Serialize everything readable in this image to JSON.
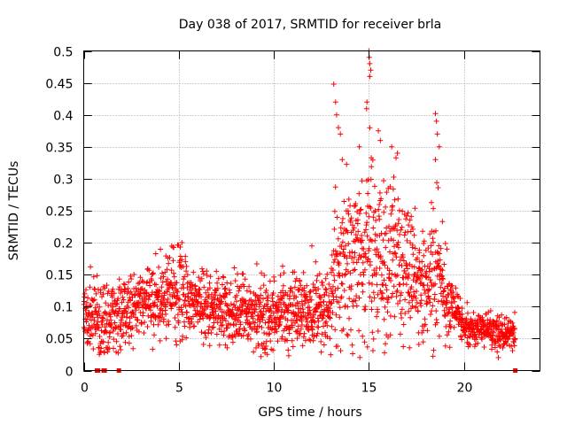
{
  "chart_data": {
    "type": "scatter",
    "title": "Day 038 of 2017, SRMTID for receiver brla",
    "xlabel": "GPS time / hours",
    "ylabel": "SRMTID / TECUs",
    "xlim": [
      0,
      24
    ],
    "ylim": [
      0,
      0.5
    ],
    "x_ticks": [
      0,
      5,
      10,
      15,
      20
    ],
    "x_tick_labels": [
      "0",
      "5",
      "10",
      "15",
      "20"
    ],
    "y_ticks": [
      0,
      0.05,
      0.1,
      0.15,
      0.2,
      0.25,
      0.3,
      0.35,
      0.4,
      0.45,
      0.5
    ],
    "y_tick_labels": [
      "0",
      "0.05",
      "0.1",
      "0.15",
      "0.2",
      "0.25",
      "0.3",
      "0.35",
      "0.4",
      "0.45",
      "0.5"
    ],
    "grid": true,
    "marker": "plus",
    "color": "#ff0000",
    "series": [
      {
        "name": "SRMTID",
        "profile_x": [
          0,
          0.5,
          1,
          1.5,
          2,
          2.5,
          3,
          3.5,
          4,
          4.5,
          5,
          5.5,
          6,
          6.5,
          7,
          7.5,
          8,
          8.5,
          9,
          9.5,
          10,
          10.5,
          11,
          11.5,
          12,
          12.5,
          13,
          13.2,
          13.5,
          14,
          14.5,
          15,
          15.5,
          16,
          16.5,
          17,
          17.5,
          18,
          18.5,
          19,
          19.5,
          20,
          20.5,
          21,
          21.5,
          22,
          22.5
        ],
        "profile_center": [
          0.08,
          0.09,
          0.07,
          0.08,
          0.09,
          0.1,
          0.1,
          0.11,
          0.11,
          0.12,
          0.13,
          0.11,
          0.11,
          0.1,
          0.1,
          0.09,
          0.09,
          0.09,
          0.09,
          0.08,
          0.09,
          0.09,
          0.09,
          0.1,
          0.1,
          0.1,
          0.1,
          0.16,
          0.17,
          0.15,
          0.17,
          0.19,
          0.16,
          0.17,
          0.18,
          0.17,
          0.14,
          0.13,
          0.16,
          0.12,
          0.09,
          0.07,
          0.06,
          0.065,
          0.06,
          0.06,
          0.06
        ],
        "profile_spread": [
          0.025,
          0.03,
          0.03,
          0.03,
          0.03,
          0.03,
          0.03,
          0.03,
          0.03,
          0.03,
          0.035,
          0.03,
          0.03,
          0.03,
          0.03,
          0.03,
          0.03,
          0.03,
          0.03,
          0.03,
          0.03,
          0.03,
          0.03,
          0.03,
          0.03,
          0.03,
          0.03,
          0.07,
          0.08,
          0.07,
          0.07,
          0.09,
          0.07,
          0.07,
          0.07,
          0.06,
          0.05,
          0.05,
          0.06,
          0.04,
          0.02,
          0.015,
          0.015,
          0.015,
          0.015,
          0.015,
          0.015
        ],
        "x_start": 0,
        "x_end": 22.7,
        "num_points": 2200,
        "outliers": [
          [
            13.15,
            0.448
          ],
          [
            13.25,
            0.42
          ],
          [
            13.3,
            0.4
          ],
          [
            13.4,
            0.38
          ],
          [
            13.5,
            0.37
          ],
          [
            14.9,
            0.42
          ],
          [
            15.0,
            0.5
          ],
          [
            15.02,
            0.49
          ],
          [
            15.05,
            0.48
          ],
          [
            15.1,
            0.47
          ],
          [
            15.05,
            0.46
          ],
          [
            15.5,
            0.375
          ],
          [
            15.6,
            0.36
          ],
          [
            16.2,
            0.35
          ],
          [
            16.5,
            0.34
          ],
          [
            18.5,
            0.402
          ],
          [
            18.55,
            0.39
          ],
          [
            18.6,
            0.37
          ],
          [
            18.7,
            0.35
          ],
          [
            18.5,
            0.33
          ],
          [
            12.0,
            0.195
          ],
          [
            12.2,
            0.17
          ],
          [
            13.6,
            0.33
          ],
          [
            14.5,
            0.35
          ]
        ],
        "zero_markers": [
          0.7,
          0.75,
          1.05,
          1.1,
          1.85,
          22.7
        ]
      }
    ]
  }
}
